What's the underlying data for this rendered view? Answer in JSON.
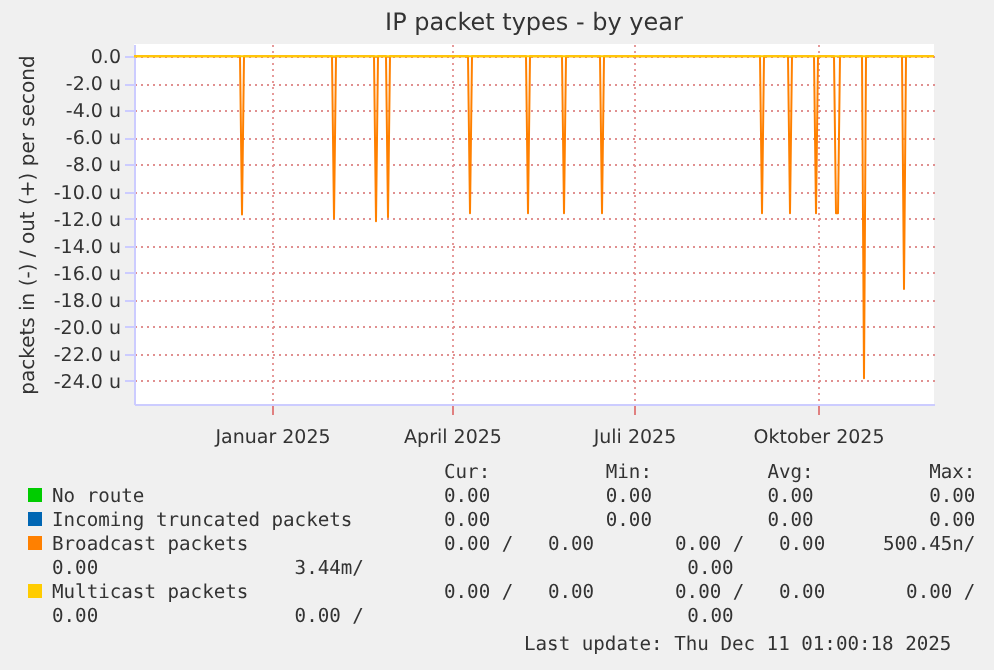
{
  "chart_data": {
    "type": "line",
    "title": "IP packet types - by year",
    "ylabel": "packets in (-) / out (+) per second",
    "xlim": [
      "2024-10-24",
      "2025-11-28"
    ],
    "xticks": [
      {
        "value": "2025-01-01",
        "label": "Januar 2025"
      },
      {
        "value": "2025-04-01",
        "label": "April 2025"
      },
      {
        "value": "2025-07-01",
        "label": "Juli 2025"
      },
      {
        "value": "2025-10-01",
        "label": "Oktober 2025"
      }
    ],
    "ylim": [
      -25.7,
      0.9
    ],
    "yticks": [
      {
        "value": 0,
        "label": "0.0"
      },
      {
        "value": -2,
        "label": "-2.0 u"
      },
      {
        "value": -4,
        "label": "-4.0 u"
      },
      {
        "value": -6,
        "label": "-6.0 u"
      },
      {
        "value": -8,
        "label": "-8.0 u"
      },
      {
        "value": -10,
        "label": "-10.0 u"
      },
      {
        "value": -12,
        "label": "-12.0 u"
      },
      {
        "value": -14,
        "label": "-14.0 u"
      },
      {
        "value": -16,
        "label": "-16.0 u"
      },
      {
        "value": -18,
        "label": "-18.0 u"
      },
      {
        "value": -20,
        "label": "-20.0 u"
      },
      {
        "value": -22,
        "label": "-22.0 u"
      },
      {
        "value": -24,
        "label": "-24.0 u"
      }
    ],
    "grid": true,
    "legend": "bottom",
    "line_style": "solid",
    "marker": "none",
    "series": [
      {
        "name": "No route",
        "color": "#00cc00"
      },
      {
        "name": "Incoming truncated packets",
        "color": "#0066b3"
      },
      {
        "name": "Broadcast packets",
        "color": "#ff8000",
        "x": [
          "2024-10-24",
          "2024-12-16",
          "2024-12-17",
          "2024-12-18",
          "2025-01-31",
          "2025-02-01",
          "2025-02-02",
          "2025-02-21",
          "2025-02-22",
          "2025-02-23",
          "2025-02-27",
          "2025-02-28",
          "2025-03-01",
          "2025-04-09",
          "2025-04-10",
          "2025-04-11",
          "2025-05-08",
          "2025-05-09",
          "2025-05-10",
          "2025-05-26",
          "2025-05-27",
          "2025-05-28",
          "2025-06-14",
          "2025-06-15",
          "2025-06-16",
          "2025-09-02",
          "2025-09-03",
          "2025-09-04",
          "2025-09-16",
          "2025-09-17",
          "2025-09-18",
          "2025-09-29",
          "2025-09-30",
          "2025-10-01",
          "2025-10-09",
          "2025-10-10",
          "2025-10-11",
          "2025-10-12",
          "2025-10-23",
          "2025-10-24",
          "2025-10-25",
          "2025-11-12",
          "2025-11-13",
          "2025-11-14",
          "2025-11-28"
        ],
        "values": [
          0,
          0,
          -11.7,
          0,
          0,
          -12.0,
          0,
          0,
          -12.2,
          0,
          0,
          -11.9,
          0,
          0,
          -11.6,
          0,
          0,
          -11.6,
          0,
          0,
          -11.6,
          0,
          0,
          -11.6,
          0,
          0,
          -11.6,
          0,
          0,
          -11.6,
          0,
          0,
          -11.6,
          0,
          0,
          -11.6,
          -11.6,
          0,
          0,
          -23.8,
          0,
          0,
          -17.2,
          0,
          0
        ]
      },
      {
        "name": "Multicast packets",
        "color": "#ffcc00",
        "x": [
          "2024-10-24",
          "2025-11-28"
        ],
        "values": [
          0,
          0
        ]
      }
    ],
    "annotations": [
      "Cur:          Min:          Avg:          Max:",
      "0.00          0.00          0.00          0.00",
      "0.00          0.00          0.00          0.00",
      "0.00 /   0.00       0.00 /   0.00     500.45n/\n0.00                 3.44m/                            0.00",
      "0.00 /   0.00       0.00 /   0.00       0.00 /\n0.00                 0.00 /                            0.00",
      "Last update: Thu Dec 11 01:00:18 2025"
    ]
  }
}
